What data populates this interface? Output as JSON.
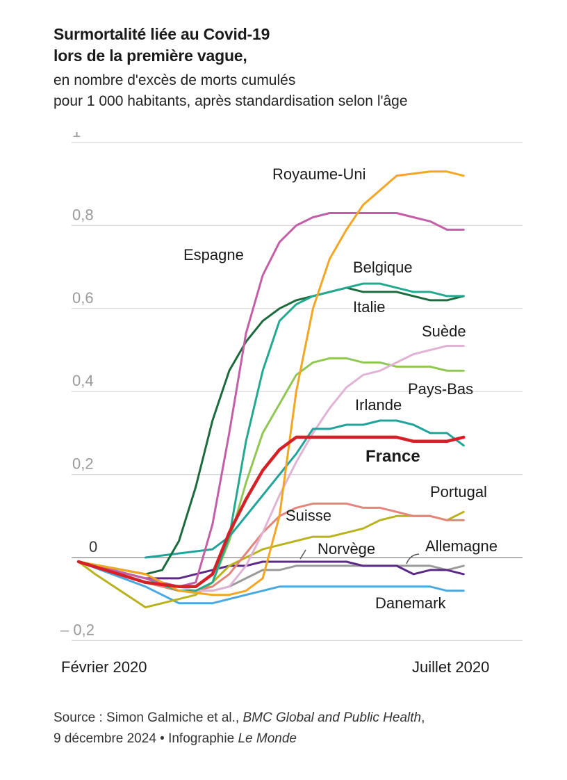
{
  "title": {
    "line1": "Surmortalité liée au Covid-19",
    "line2": "lors de la première vague,"
  },
  "subtitle": {
    "line1": "en nombre d'excès de morts cumulés",
    "line2": "pour 1 000 habitants, après standardisation selon l'âge"
  },
  "source": {
    "prefix": "Source : Simon Galmiche et al., ",
    "journal": "BMC Global and Public Health",
    "comma": ",",
    "date": "9 décembre 2024 • Infographie ",
    "publisher": "Le Monde"
  },
  "chart_data": {
    "type": "line",
    "x_start_label": "Février 2020",
    "x_end_label": "Juillet 2020",
    "ylim": [
      -0.2,
      1
    ],
    "y_ticks": [
      {
        "value": 1,
        "label": "1"
      },
      {
        "value": 0.8,
        "label": "0,8"
      },
      {
        "value": 0.6,
        "label": "0,6"
      },
      {
        "value": 0.4,
        "label": "0,4"
      },
      {
        "value": 0.2,
        "label": "0,2"
      },
      {
        "value": 0,
        "label": "0"
      },
      {
        "value": -0.2,
        "label": "– 0,2"
      }
    ],
    "grid": true,
    "series": [
      {
        "name": "Royaume-Uni",
        "color": "#f4a522",
        "x": [
          0,
          4,
          6,
          8,
          9,
          10,
          11,
          12,
          13,
          14,
          15,
          16,
          17,
          19,
          21,
          22,
          23
        ],
        "y": [
          -0.01,
          -0.04,
          -0.08,
          -0.09,
          -0.09,
          -0.08,
          -0.05,
          0.1,
          0.4,
          0.6,
          0.72,
          0.79,
          0.85,
          0.92,
          0.93,
          0.93,
          0.92
        ]
      },
      {
        "name": "Espagne",
        "color": "#c35ea7",
        "x": [
          0,
          4,
          6,
          7,
          8,
          9,
          10,
          11,
          12,
          13,
          14,
          15,
          16,
          17,
          18,
          19,
          20,
          21,
          22,
          23
        ],
        "y": [
          -0.01,
          -0.05,
          -0.07,
          -0.06,
          0.08,
          0.3,
          0.54,
          0.68,
          0.76,
          0.8,
          0.82,
          0.83,
          0.83,
          0.83,
          0.83,
          0.83,
          0.82,
          0.81,
          0.79,
          0.79
        ]
      },
      {
        "name": "Belgique",
        "color": "#23a98f",
        "x": [
          0,
          4,
          6,
          7,
          8,
          9,
          10,
          11,
          12,
          13,
          14,
          15,
          16,
          17,
          18,
          19,
          20,
          21,
          22,
          23
        ],
        "y": [
          -0.01,
          -0.05,
          -0.08,
          -0.08,
          -0.06,
          0.05,
          0.28,
          0.45,
          0.57,
          0.61,
          0.63,
          0.64,
          0.65,
          0.66,
          0.66,
          0.65,
          0.64,
          0.64,
          0.63,
          0.63
        ]
      },
      {
        "name": "Italie",
        "color": "#1b6b3d",
        "x": [
          0,
          4,
          5,
          6,
          7,
          8,
          9,
          10,
          11,
          12,
          13,
          14,
          15,
          16,
          17,
          18,
          19,
          20,
          21,
          22,
          23
        ],
        "y": [
          -0.01,
          -0.04,
          -0.03,
          0.04,
          0.17,
          0.33,
          0.45,
          0.52,
          0.57,
          0.6,
          0.62,
          0.63,
          0.64,
          0.65,
          0.64,
          0.64,
          0.64,
          0.63,
          0.62,
          0.62,
          0.63
        ]
      },
      {
        "name": "Suède",
        "color": "#e0b3d5",
        "x": [
          0,
          4,
          6,
          7,
          8,
          9,
          10,
          11,
          12,
          13,
          14,
          15,
          16,
          17,
          18,
          19,
          20,
          21,
          22,
          23
        ],
        "y": [
          -0.01,
          -0.05,
          -0.07,
          -0.08,
          -0.08,
          -0.07,
          -0.02,
          0.06,
          0.15,
          0.23,
          0.3,
          0.36,
          0.41,
          0.44,
          0.45,
          0.47,
          0.49,
          0.5,
          0.51,
          0.51
        ]
      },
      {
        "name": "Pays-Bas",
        "color": "#8fc752",
        "x": [
          0,
          4,
          6,
          7,
          8,
          9,
          10,
          11,
          12,
          13,
          14,
          15,
          16,
          17,
          18,
          19,
          20,
          21,
          22,
          23
        ],
        "y": [
          -0.01,
          -0.05,
          -0.08,
          -0.08,
          -0.06,
          0.04,
          0.18,
          0.3,
          0.37,
          0.44,
          0.47,
          0.48,
          0.48,
          0.47,
          0.47,
          0.46,
          0.46,
          0.46,
          0.45,
          0.45
        ]
      },
      {
        "name": "Irlande",
        "color": "#1fa39a",
        "x": [
          4,
          8,
          9,
          10,
          11,
          12,
          13,
          14,
          15,
          16,
          17,
          18,
          19,
          20,
          21,
          22,
          23
        ],
        "y": [
          0,
          0.02,
          0.05,
          0.1,
          0.15,
          0.2,
          0.25,
          0.31,
          0.31,
          0.32,
          0.32,
          0.33,
          0.33,
          0.32,
          0.3,
          0.3,
          0.27
        ]
      },
      {
        "name": "France",
        "color": "#d42026",
        "x": [
          0,
          4,
          6,
          7,
          8,
          9,
          10,
          11,
          12,
          13,
          14,
          15,
          16,
          17,
          18,
          19,
          20,
          21,
          22,
          23
        ],
        "y": [
          -0.01,
          -0.06,
          -0.07,
          -0.07,
          -0.04,
          0.06,
          0.14,
          0.21,
          0.26,
          0.29,
          0.29,
          0.29,
          0.29,
          0.29,
          0.29,
          0.29,
          0.28,
          0.28,
          0.28,
          0.29
        ]
      },
      {
        "name": "Suisse",
        "color": "#e4847a",
        "x": [
          0,
          4,
          6,
          7,
          8,
          9,
          10,
          11,
          12,
          13,
          14,
          15,
          16,
          17,
          18,
          19,
          20,
          21,
          22,
          23
        ],
        "y": [
          -0.01,
          -0.06,
          -0.08,
          -0.08,
          -0.07,
          -0.04,
          0.01,
          0.06,
          0.1,
          0.12,
          0.13,
          0.13,
          0.13,
          0.12,
          0.12,
          0.11,
          0.1,
          0.1,
          0.09,
          0.09
        ]
      },
      {
        "name": "Portugal",
        "color": "#b8b21c",
        "x": [
          0,
          1,
          4,
          5,
          6,
          7,
          8,
          9,
          10,
          11,
          12,
          13,
          14,
          15,
          16,
          17,
          18,
          19,
          20,
          21,
          22,
          23
        ],
        "y": [
          -0.01,
          -0.04,
          -0.12,
          -0.11,
          -0.1,
          -0.09,
          -0.06,
          -0.02,
          0,
          0.02,
          0.03,
          0.04,
          0.05,
          0.05,
          0.06,
          0.07,
          0.09,
          0.1,
          0.1,
          0.1,
          0.09,
          0.11
        ]
      },
      {
        "name": "Norvège",
        "color": "#5b2a86",
        "x": [
          0,
          4,
          6,
          8,
          9,
          10,
          11,
          12,
          13,
          14,
          15,
          16,
          17,
          18,
          19,
          20,
          21,
          22,
          23
        ],
        "y": [
          -0.01,
          -0.05,
          -0.05,
          -0.03,
          -0.02,
          -0.02,
          -0.01,
          -0.01,
          -0.01,
          -0.01,
          -0.01,
          -0.01,
          -0.02,
          -0.02,
          -0.02,
          -0.04,
          -0.03,
          -0.03,
          -0.04
        ]
      },
      {
        "name": "Allemagne",
        "color": "#9a9a9a",
        "x": [
          0,
          4,
          6,
          7,
          8,
          9,
          10,
          11,
          12,
          13,
          14,
          15,
          16,
          17,
          18,
          19,
          20,
          21,
          22,
          23
        ],
        "y": [
          -0.01,
          -0.06,
          -0.08,
          -0.08,
          -0.08,
          -0.07,
          -0.05,
          -0.03,
          -0.03,
          -0.02,
          -0.02,
          -0.02,
          -0.02,
          -0.02,
          -0.02,
          -0.02,
          -0.02,
          -0.02,
          -0.03,
          -0.02
        ]
      },
      {
        "name": "Danemark",
        "color": "#4aa8e0",
        "x": [
          0,
          4,
          6,
          8,
          9,
          10,
          11,
          12,
          13,
          14,
          15,
          16,
          17,
          18,
          19,
          20,
          21,
          22,
          23
        ],
        "y": [
          -0.01,
          -0.07,
          -0.11,
          -0.11,
          -0.1,
          -0.09,
          -0.08,
          -0.07,
          -0.07,
          -0.07,
          -0.07,
          -0.07,
          -0.07,
          -0.07,
          -0.07,
          -0.07,
          -0.07,
          -0.08,
          -0.08
        ]
      }
    ],
    "labels": [
      {
        "text": "Royaume-Uni",
        "series": "Royaume-Uni",
        "bold": false
      },
      {
        "text": "Espagne",
        "series": "Espagne",
        "bold": false
      },
      {
        "text": "Belgique",
        "series": "Belgique",
        "bold": false
      },
      {
        "text": "Italie",
        "series": "Italie",
        "bold": false
      },
      {
        "text": "Suède",
        "series": "Suède",
        "bold": false
      },
      {
        "text": "Pays-Bas",
        "series": "Pays-Bas",
        "bold": false
      },
      {
        "text": "Irlande",
        "series": "Irlande",
        "bold": false
      },
      {
        "text": "France",
        "series": "France",
        "bold": true
      },
      {
        "text": "Portugal",
        "series": "Portugal",
        "bold": false
      },
      {
        "text": "Suisse",
        "series": "Suisse",
        "bold": false
      },
      {
        "text": "Norvège",
        "series": "Norvège",
        "bold": false
      },
      {
        "text": "Allemagne",
        "series": "Allemagne",
        "bold": false
      },
      {
        "text": "Danemark",
        "series": "Danemark",
        "bold": false
      }
    ]
  }
}
